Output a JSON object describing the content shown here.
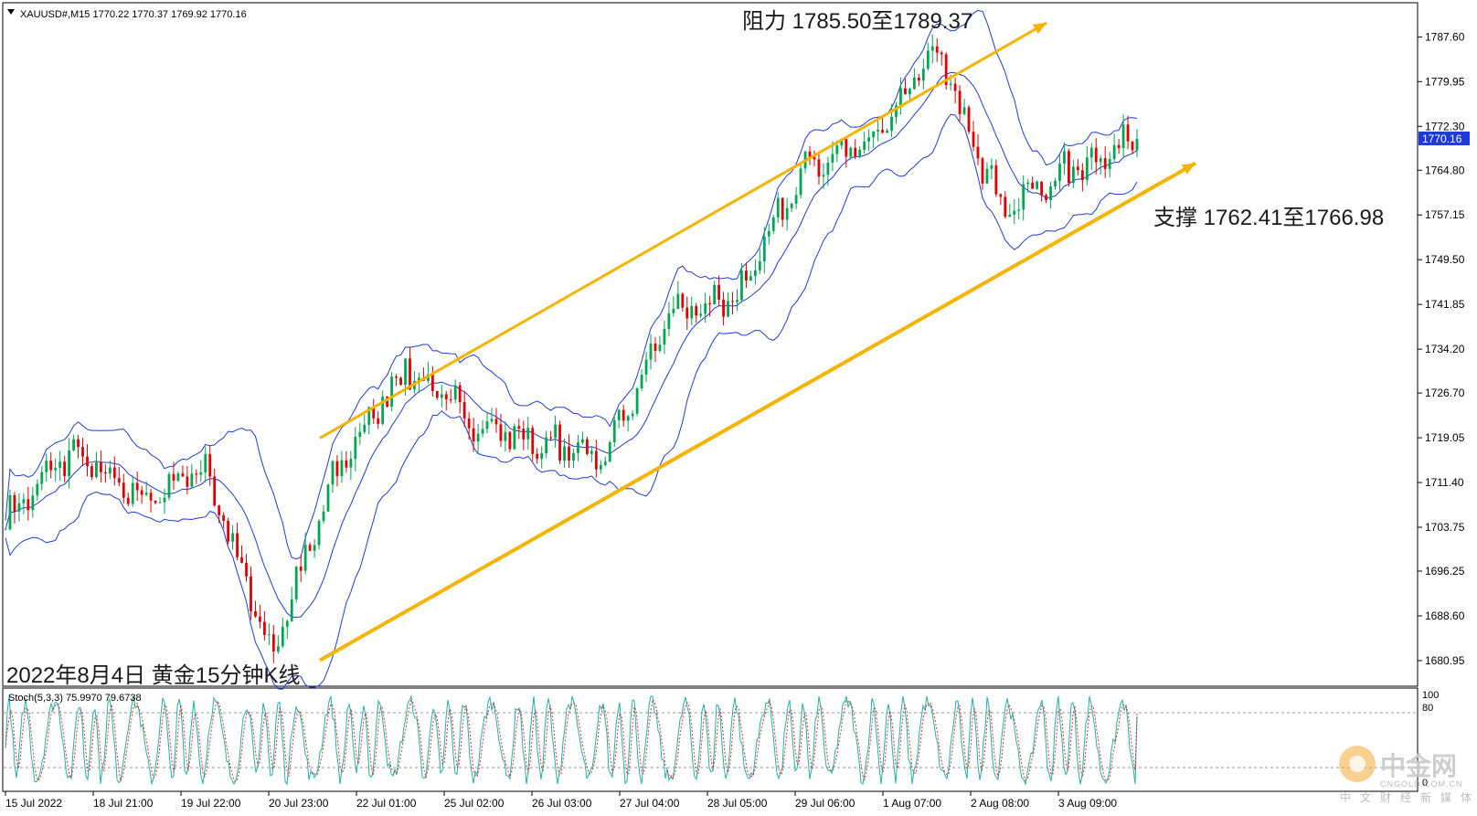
{
  "header": {
    "symbol_line": "XAUUSD#,M15  1770.22 1770.37 1769.92 1770.16"
  },
  "annotations": {
    "resistance": "阻力 1785.50至1789.37",
    "support": "支撑 1762.41至1766.98",
    "chart_caption": "2022年8月4日 黄金15分钟K线"
  },
  "indicator": {
    "label": "Stoch(5,3,3) 75.9970 79.6738",
    "level_high": "100",
    "level_80": "80",
    "level_low": "0"
  },
  "price_axis": {
    "ticks": [
      "1787.60",
      "1779.95",
      "1772.30",
      "1764.80",
      "1757.15",
      "1749.50",
      "1741.85",
      "1734.20",
      "1726.70",
      "1719.05",
      "1711.40",
      "1703.75",
      "1696.25",
      "1688.60",
      "1680.95"
    ],
    "current_price": "1770.16"
  },
  "time_axis": {
    "ticks": [
      "15 Jul 2022",
      "18 Jul 21:00",
      "19 Jul 22:00",
      "20 Jul 23:00",
      "22 Jul 01:00",
      "25 Jul 02:00",
      "26 Jul 03:00",
      "27 Jul 04:00",
      "28 Jul 05:00",
      "29 Jul 06:00",
      "1 Aug 07:00",
      "2 Aug 08:00",
      "3 Aug 09:00"
    ]
  },
  "watermark": {
    "name": "中金网",
    "domain": "CNGOLD.COM.CN",
    "tagline": "中文财经新媒体"
  },
  "colors": {
    "bull_candle": "#00a651",
    "bear_candle": "#e00000",
    "bollinger": "#1f3bd6",
    "channel": "#f5b400",
    "stoch_main": "#20b2aa",
    "stoch_signal": "#e03030",
    "current_price_bg": "#1f3bd6"
  },
  "chart_data": {
    "type": "candlestick",
    "symbol": "XAUUSD#",
    "timeframe": "M15",
    "ylim": [
      1677.5,
      1792.5
    ],
    "last_price": 1770.16,
    "approx_close_path": [
      {
        "x": "15 Jul 2022",
        "y": 1705
      },
      {
        "x": "15 Jul 2022 (late)",
        "y": 1717
      },
      {
        "x": "18 Jul 21:00",
        "y": 1708
      },
      {
        "x": "19 Jul 22:00",
        "y": 1714
      },
      {
        "x": "20 Jul 23:00",
        "y": 1682
      },
      {
        "x": "22 Jul 01:00",
        "y": 1714
      },
      {
        "x": "22 Jul 01:00 (late)",
        "y": 1731
      },
      {
        "x": "25 Jul 02:00",
        "y": 1722
      },
      {
        "x": "26 Jul 03:00",
        "y": 1718
      },
      {
        "x": "27 Jul 04:00",
        "y": 1716
      },
      {
        "x": "27 Jul 04:00 (late)",
        "y": 1740
      },
      {
        "x": "28 Jul 05:00",
        "y": 1743
      },
      {
        "x": "29 Jul 06:00",
        "y": 1765
      },
      {
        "x": "1 Aug 07:00",
        "y": 1770
      },
      {
        "x": "2 Aug 08:00",
        "y": 1785
      },
      {
        "x": "2 Aug 08:00 (late)",
        "y": 1758
      },
      {
        "x": "3 Aug 09:00",
        "y": 1765
      },
      {
        "x": "3 Aug 09:00 (end)",
        "y": 1770.16
      }
    ],
    "indicators": [
      "Bollinger Bands",
      "Stochastic(5,3,3)"
    ],
    "stochastic": {
      "main": 75.997,
      "signal": 79.6738
    },
    "trend_channel": {
      "resistance": [
        1785.5,
        1789.37
      ],
      "support": [
        1762.41,
        1766.98
      ]
    }
  }
}
